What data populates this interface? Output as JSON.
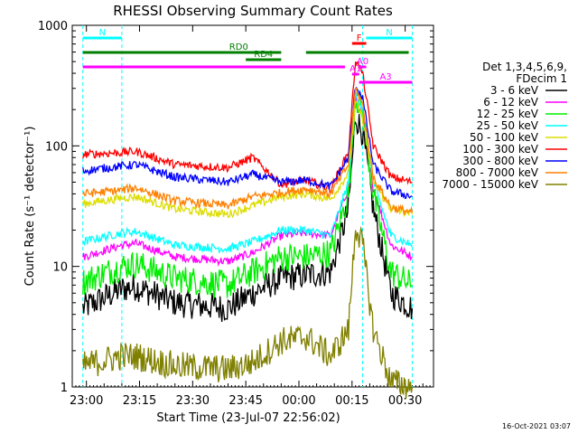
{
  "chart_data": {
    "type": "line",
    "title": "RHESSI Observing Summary Count Rates",
    "xlabel": "Start Time (23-Jul-07 22:56:02)",
    "ylabel": "Count Rate (s⁻¹ detector⁻¹)",
    "yscale": "log",
    "ylim": [
      1,
      1000
    ],
    "xlim_minutes": [
      -4,
      98
    ],
    "x_ticks": [
      {
        "label": "23:00",
        "min": 0
      },
      {
        "label": "23:15",
        "min": 15
      },
      {
        "label": "23:30",
        "min": 30
      },
      {
        "label": "23:45",
        "min": 45
      },
      {
        "label": "00:00",
        "min": 60
      },
      {
        "label": "00:15",
        "min": 75
      },
      {
        "label": "00:30",
        "min": 90
      }
    ],
    "y_ticks": [
      {
        "label": "1",
        "v": 1
      },
      {
        "label": "10",
        "v": 10
      },
      {
        "label": "100",
        "v": 100
      },
      {
        "label": "1000",
        "v": 1000
      }
    ],
    "legend_header": [
      "Det 1,3,4,5,6,9,",
      "FDecim 1"
    ],
    "series": [
      {
        "name": "3 - 6 keV",
        "color": "#000000",
        "values_x": [
          -1,
          10,
          14,
          25,
          40,
          47,
          55,
          62,
          69,
          74,
          76,
          78,
          81,
          86,
          92
        ],
        "values_y": [
          4.5,
          6.5,
          6.8,
          5,
          4.5,
          6,
          8,
          8.5,
          9,
          30,
          175,
          130,
          30,
          6,
          4.5
        ]
      },
      {
        "name": "6 - 12 keV",
        "color": "#ff00ff",
        "values_x": [
          -1,
          10,
          14,
          25,
          40,
          47,
          55,
          62,
          69,
          74,
          76,
          78,
          81,
          86,
          92
        ],
        "values_y": [
          12,
          15,
          15.5,
          12,
          11,
          13,
          18,
          19,
          18,
          45,
          240,
          180,
          45,
          15,
          12
        ]
      },
      {
        "name": "12 - 25 keV",
        "color": "#00ee00",
        "values_x": [
          -1,
          10,
          14,
          25,
          40,
          47,
          55,
          62,
          69,
          74,
          76,
          78,
          81,
          86,
          92
        ],
        "values_y": [
          7.5,
          10,
          10.5,
          8,
          7,
          9,
          12,
          12,
          13,
          40,
          260,
          190,
          40,
          9,
          7
        ]
      },
      {
        "name": "25 - 50 keV",
        "color": "#00ffff",
        "values_x": [
          -1,
          10,
          14,
          25,
          40,
          47,
          55,
          62,
          69,
          74,
          76,
          78,
          81,
          86,
          92
        ],
        "values_y": [
          16,
          19,
          19.5,
          15,
          14,
          16,
          20,
          20,
          18,
          50,
          280,
          200,
          50,
          18,
          15
        ]
      },
      {
        "name": "50 - 100 keV",
        "color": "#dddd00",
        "values_x": [
          -1,
          10,
          14,
          25,
          40,
          47,
          55,
          62,
          69,
          74,
          76,
          78,
          81,
          86,
          92
        ],
        "values_y": [
          33,
          37,
          38,
          30,
          27,
          32,
          38,
          40,
          36,
          60,
          230,
          170,
          50,
          30,
          27
        ]
      },
      {
        "name": "100 - 300 keV",
        "color": "#ff0000",
        "values_x": [
          -1,
          10,
          14,
          25,
          40,
          47,
          55,
          62,
          69,
          74,
          76,
          78,
          81,
          86,
          92
        ],
        "values_y": [
          85,
          88,
          90,
          70,
          66,
          80,
          48,
          52,
          44,
          90,
          520,
          400,
          100,
          55,
          50
        ]
      },
      {
        "name": "300 - 800 keV",
        "color": "#0000ff",
        "values_x": [
          -1,
          10,
          14,
          25,
          40,
          47,
          55,
          62,
          69,
          74,
          76,
          78,
          81,
          86,
          92
        ],
        "values_y": [
          62,
          68,
          70,
          55,
          50,
          58,
          50,
          52,
          46,
          80,
          320,
          250,
          70,
          42,
          38
        ]
      },
      {
        "name": "800 - 7000 keV",
        "color": "#ff8000",
        "values_x": [
          -1,
          10,
          14,
          25,
          40,
          47,
          55,
          62,
          69,
          74,
          76,
          78,
          81,
          86,
          92
        ],
        "values_y": [
          40,
          43,
          45,
          35,
          32,
          38,
          41,
          44,
          40,
          70,
          300,
          220,
          55,
          31,
          28
        ]
      },
      {
        "name": "7000 - 15000 keV",
        "color": "#808000",
        "values_x": [
          -1,
          10,
          14,
          25,
          40,
          47,
          55,
          62,
          69,
          74,
          76,
          78,
          81,
          86,
          92
        ],
        "values_y": [
          1.5,
          1.8,
          1.8,
          1.5,
          1.4,
          1.6,
          2.4,
          2.6,
          1.8,
          3,
          22,
          15,
          3,
          1.1,
          1
        ]
      }
    ],
    "flags": [
      {
        "label": "N",
        "color": "#00ffff",
        "x0": -1,
        "x1": 10
      },
      {
        "label": "N",
        "color": "#00ffff",
        "x0": 79,
        "x1": 92
      },
      {
        "label": "",
        "color": "#008000",
        "x0": -1,
        "x1": 55
      },
      {
        "label": "RD0",
        "color": "#008000",
        "x0": 41,
        "x1": 45
      },
      {
        "label": "RD4",
        "color": "#008000",
        "x0": 45,
        "x1": 55
      },
      {
        "label": "",
        "color": "#008000",
        "x0": 62,
        "x1": 91
      },
      {
        "label": "F",
        "color": "#ff0000",
        "x0": 75,
        "x1": 79
      },
      {
        "label": "",
        "color": "#ff00ff",
        "x0": -1,
        "x1": 73
      },
      {
        "label": "A0",
        "color": "#ff00ff",
        "x0": 77,
        "x1": 79
      },
      {
        "label": "A1",
        "color": "#ff00ff",
        "x0": 75,
        "x1": 77
      },
      {
        "label": "A3",
        "color": "#ff00ff",
        "x0": 77,
        "x1": 92
      }
    ],
    "vlines_min": [
      -1,
      10,
      78,
      92
    ],
    "timestamp": "16-Oct-2021 03:07"
  }
}
